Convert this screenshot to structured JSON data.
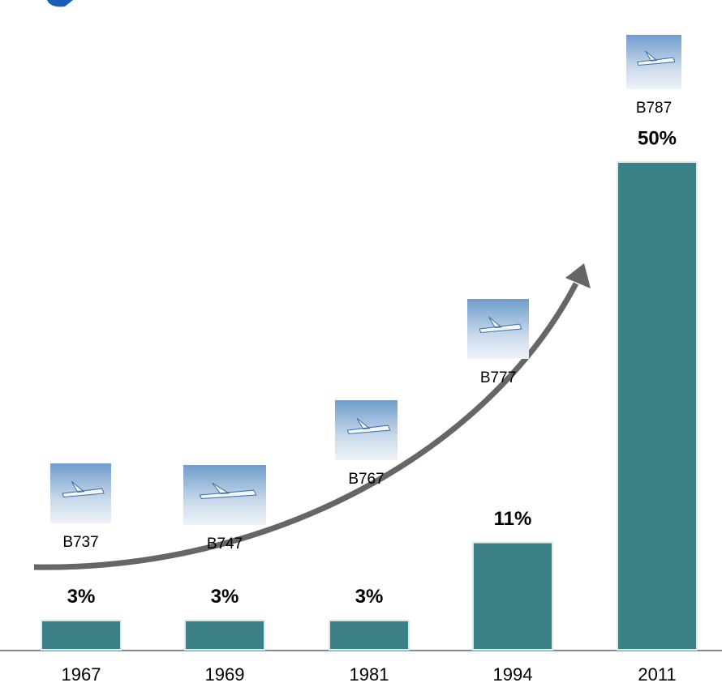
{
  "chart_data": {
    "type": "bar",
    "categories": [
      "1967",
      "1969",
      "1981",
      "1994",
      "2011"
    ],
    "values": [
      3,
      3,
      3,
      11,
      50
    ],
    "value_labels": [
      "3%",
      "3%",
      "3%",
      "11%",
      "50%"
    ],
    "annotations": [
      "B737",
      "B747",
      "B767",
      "B777",
      "B787"
    ],
    "color": "#3b8086"
  }
}
